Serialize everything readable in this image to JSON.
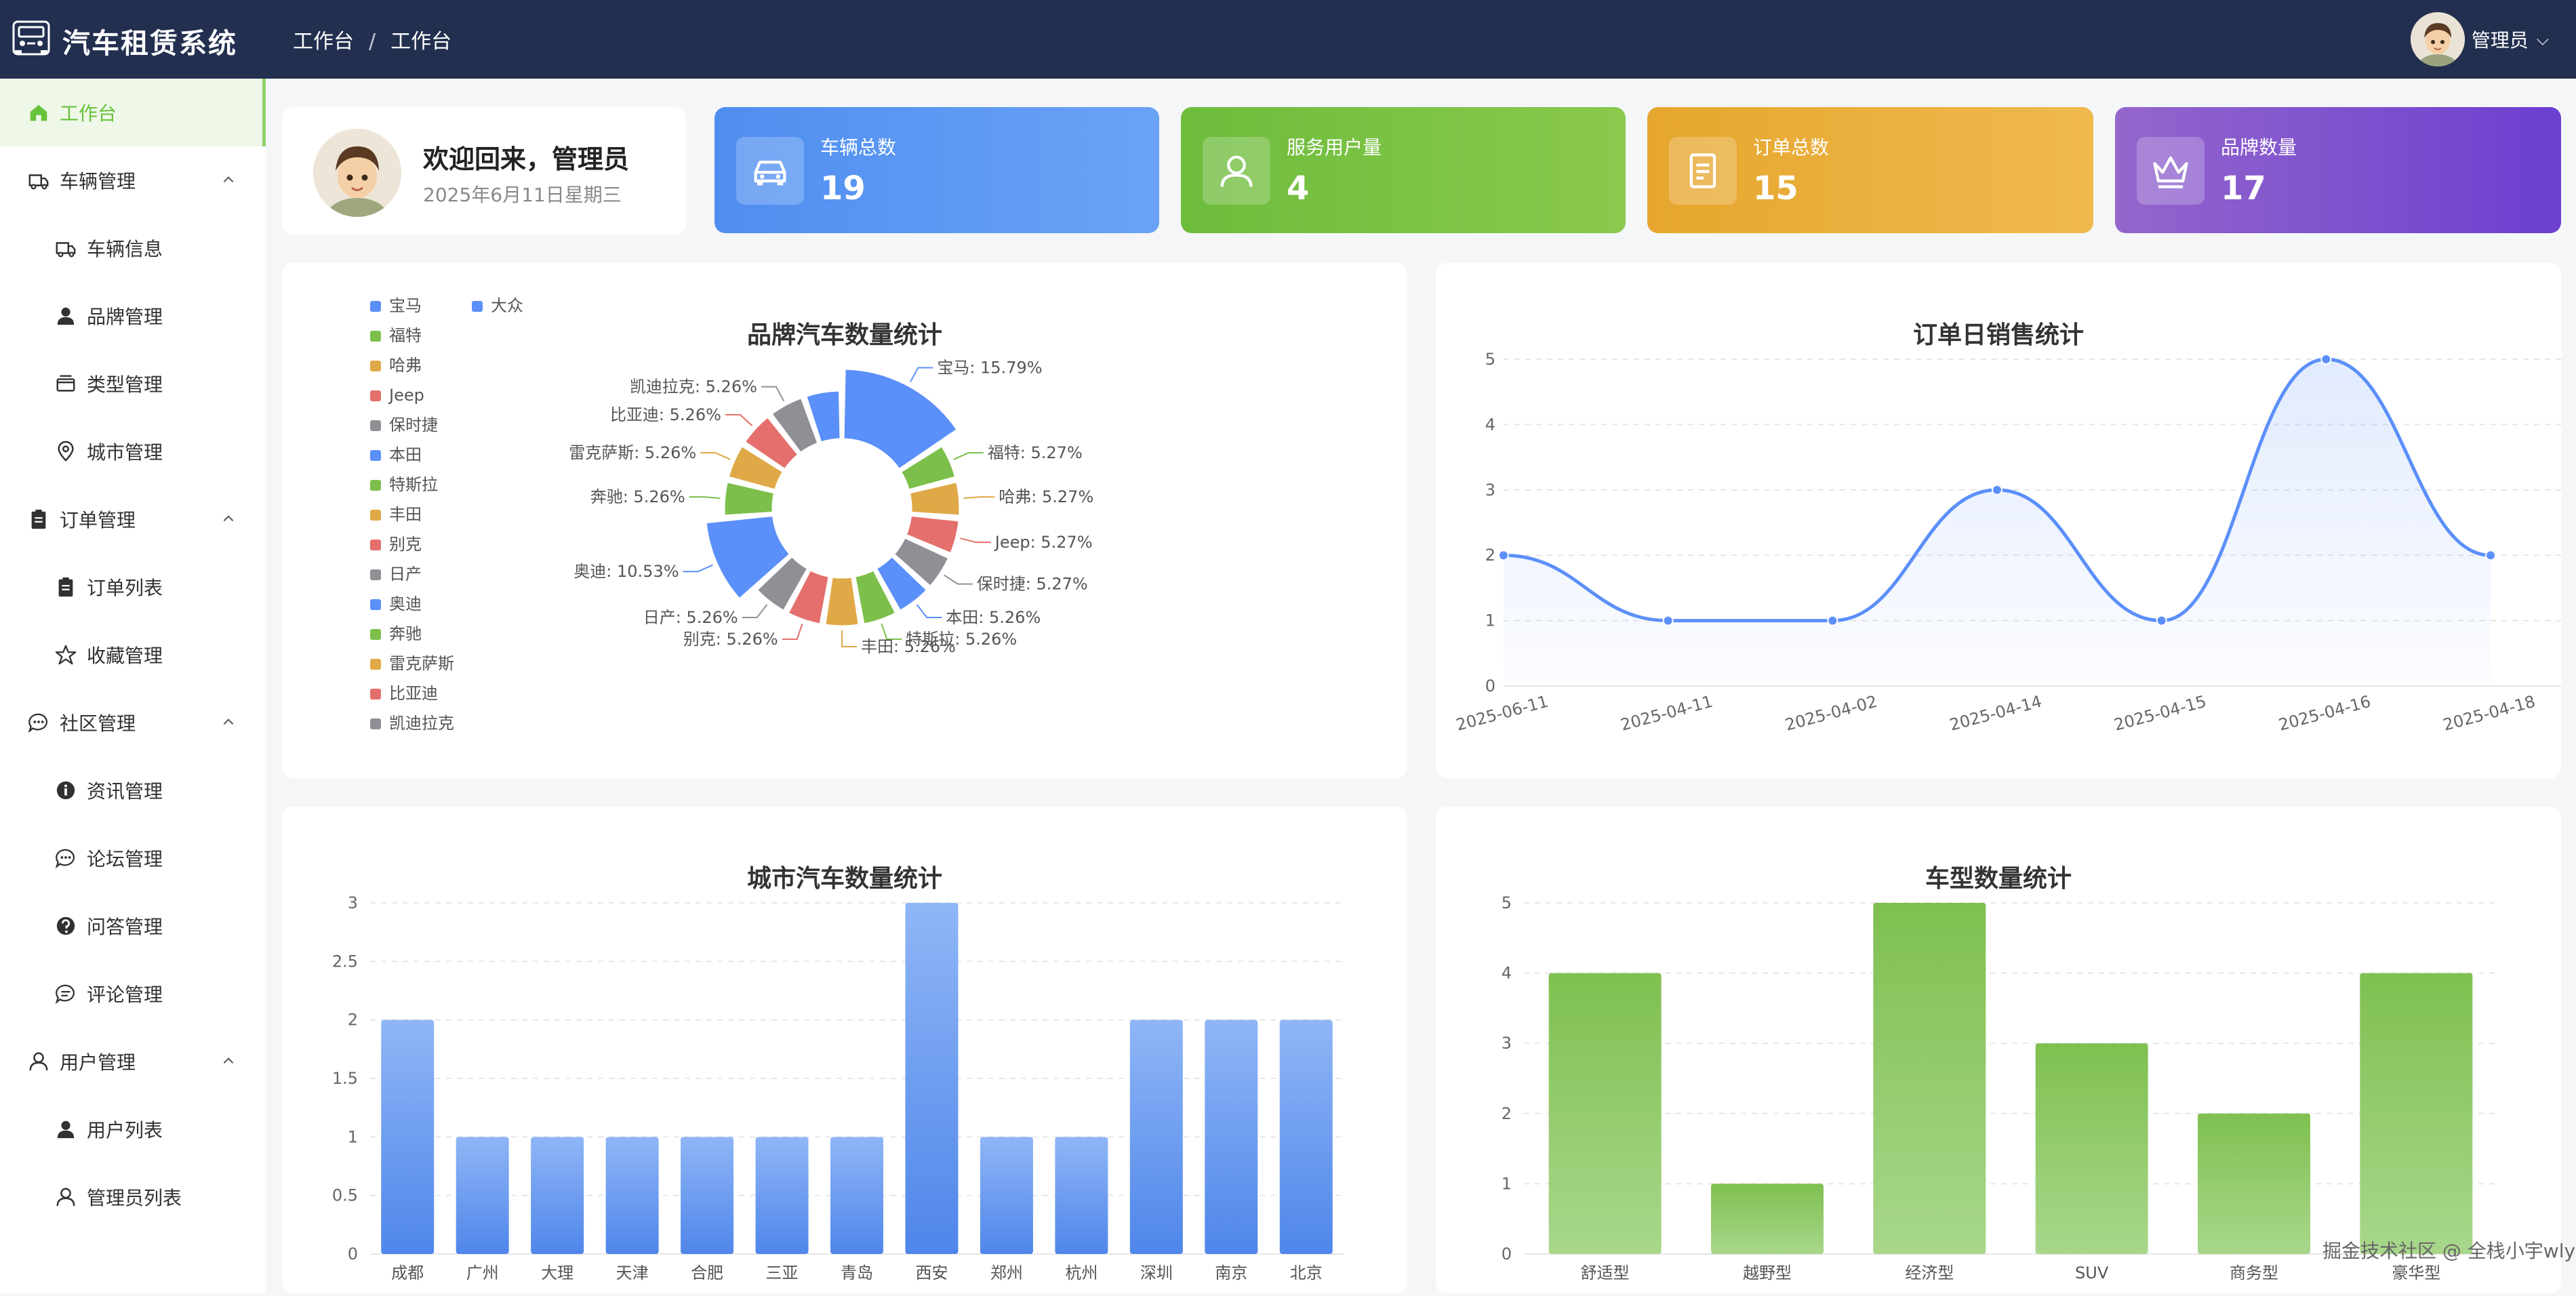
{
  "app": {
    "title": "汽车租赁系统"
  },
  "header": {
    "breadcrumb": [
      "工作台",
      "工作台"
    ],
    "user_name": "管理员"
  },
  "sidebar": {
    "items": [
      {
        "label": "工作台",
        "icon": "home-icon",
        "level": 1,
        "active": true
      },
      {
        "label": "车辆管理",
        "icon": "truck-icon",
        "level": 1,
        "expanded": true
      },
      {
        "label": "车辆信息",
        "icon": "truck-icon",
        "level": 2
      },
      {
        "label": "品牌管理",
        "icon": "user-solid-icon",
        "level": 2
      },
      {
        "label": "类型管理",
        "icon": "box-icon",
        "level": 2
      },
      {
        "label": "城市管理",
        "icon": "location-pin-icon",
        "level": 2
      },
      {
        "label": "订单管理",
        "icon": "clipboard-icon",
        "level": 1,
        "expanded": true
      },
      {
        "label": "订单列表",
        "icon": "clipboard-icon",
        "level": 2
      },
      {
        "label": "收藏管理",
        "icon": "star-icon",
        "level": 2
      },
      {
        "label": "社区管理",
        "icon": "chat-dots-icon",
        "level": 1,
        "expanded": true
      },
      {
        "label": "资讯管理",
        "icon": "info-icon",
        "level": 2
      },
      {
        "label": "论坛管理",
        "icon": "chat-dots-icon",
        "level": 2
      },
      {
        "label": "问答管理",
        "icon": "question-icon",
        "level": 2
      },
      {
        "label": "评论管理",
        "icon": "chat-lines-icon",
        "level": 2
      },
      {
        "label": "用户管理",
        "icon": "user-icon",
        "level": 1,
        "expanded": true
      },
      {
        "label": "用户列表",
        "icon": "user-solid-icon",
        "level": 2
      },
      {
        "label": "管理员列表",
        "icon": "user-icon",
        "level": 2
      }
    ]
  },
  "welcome": {
    "title": "欢迎回来，管理员",
    "date": "2025年6月11日星期三"
  },
  "stats": [
    {
      "label": "车辆总数",
      "value": "19",
      "icon": "car-icon",
      "color": "#4f8ef0"
    },
    {
      "label": "服务用户量",
      "value": "4",
      "icon": "user-icon",
      "color": "#76c043"
    },
    {
      "label": "订单总数",
      "value": "15",
      "icon": "document-icon",
      "color": "#e9ab34"
    },
    {
      "label": "品牌数量",
      "value": "17",
      "icon": "crown-icon",
      "color": "#7b4ed6"
    }
  ],
  "chart_data": [
    {
      "type": "pie",
      "variant": "rose-donut",
      "title": "品牌汽车数量统计",
      "legend": [
        "宝马",
        "大众",
        "福特",
        "哈弗",
        "Jeep",
        "保时捷",
        "本田",
        "特斯拉",
        "丰田",
        "别克",
        "日产",
        "奥迪",
        "奔驰",
        "雷克萨斯",
        "比亚迪",
        "凯迪拉克"
      ],
      "legend_placement": "left",
      "slices": [
        {
          "name": "宝马",
          "value": 3,
          "label": "宝马: 15.79%",
          "color": "#5b8ff9"
        },
        {
          "name": "福特",
          "value": 1,
          "label": "福特: 5.27%",
          "color": "#7cc04b"
        },
        {
          "name": "哈弗",
          "value": 1,
          "label": "哈弗: 5.27%",
          "color": "#e0a947"
        },
        {
          "name": "Jeep",
          "value": 1,
          "label": "Jeep: 5.27%",
          "color": "#e46f6c"
        },
        {
          "name": "保时捷",
          "value": 1,
          "label": "保时捷: 5.27%",
          "color": "#8e9096"
        },
        {
          "name": "本田",
          "value": 1,
          "label": "本田: 5.26%",
          "color": "#5b8ff9"
        },
        {
          "name": "特斯拉",
          "value": 1,
          "label": "特斯拉: 5.26%",
          "color": "#7cc04b"
        },
        {
          "name": "丰田",
          "value": 1,
          "label": "丰田: 5.26%",
          "color": "#e0a947"
        },
        {
          "name": "别克",
          "value": 1,
          "label": "别克: 5.26%",
          "color": "#e46f6c"
        },
        {
          "name": "日产",
          "value": 1,
          "label": "日产: 5.26%",
          "color": "#8e9096"
        },
        {
          "name": "奥迪",
          "value": 2,
          "label": "奥迪: 10.53%",
          "color": "#5b8ff9"
        },
        {
          "name": "奔驰",
          "value": 1,
          "label": "奔驰: 5.26%",
          "color": "#7cc04b"
        },
        {
          "name": "雷克萨斯",
          "value": 1,
          "label": "雷克萨斯: 5.26%",
          "color": "#e0a947"
        },
        {
          "name": "比亚迪",
          "value": 1,
          "label": "比亚迪: 5.26%",
          "color": "#e46f6c"
        },
        {
          "name": "凯迪拉克",
          "value": 1,
          "label": "凯迪拉克: 5.26%",
          "color": "#8e9096"
        },
        {
          "name": "大众",
          "value": 1,
          "label": "",
          "color": "#5b8ff9"
        }
      ]
    },
    {
      "type": "line",
      "smooth": true,
      "area": true,
      "title": "订单日销售统计",
      "categories": [
        "2025-06-11",
        "2025-04-11",
        "2025-04-02",
        "2025-04-14",
        "2025-04-15",
        "2025-04-16",
        "2025-04-18"
      ],
      "values": [
        2,
        1,
        1,
        3,
        1,
        5,
        2
      ],
      "ylim": [
        0,
        5
      ],
      "yticks": [
        0,
        1,
        2,
        3,
        4,
        5
      ],
      "color": "#5b8ff9",
      "grid": true
    },
    {
      "type": "bar",
      "title": "城市汽车数量统计",
      "categories": [
        "成都",
        "广州",
        "大理",
        "天津",
        "合肥",
        "三亚",
        "青岛",
        "西安",
        "郑州",
        "杭州",
        "深圳",
        "南京",
        "北京"
      ],
      "values": [
        2,
        1,
        1,
        1,
        1,
        1,
        1,
        3,
        1,
        1,
        2,
        2,
        2
      ],
      "ylim": [
        0,
        3
      ],
      "yticks": [
        "0",
        "0.5",
        "1",
        "1.5",
        "2",
        "2.5",
        "3"
      ],
      "color": "#5b8ff9",
      "grid": true
    },
    {
      "type": "bar",
      "title": "车型数量统计",
      "categories": [
        "舒适型",
        "越野型",
        "经济型",
        "SUV",
        "商务型",
        "豪华型"
      ],
      "values": [
        4,
        1,
        5,
        3,
        2,
        4
      ],
      "ylim": [
        0,
        5
      ],
      "yticks": [
        "0",
        "1",
        "2",
        "3",
        "4",
        "5"
      ],
      "color": "#7cc04b",
      "grid": true
    }
  ],
  "watermark": "掘金技术社区 @ 全栈小宇wly"
}
